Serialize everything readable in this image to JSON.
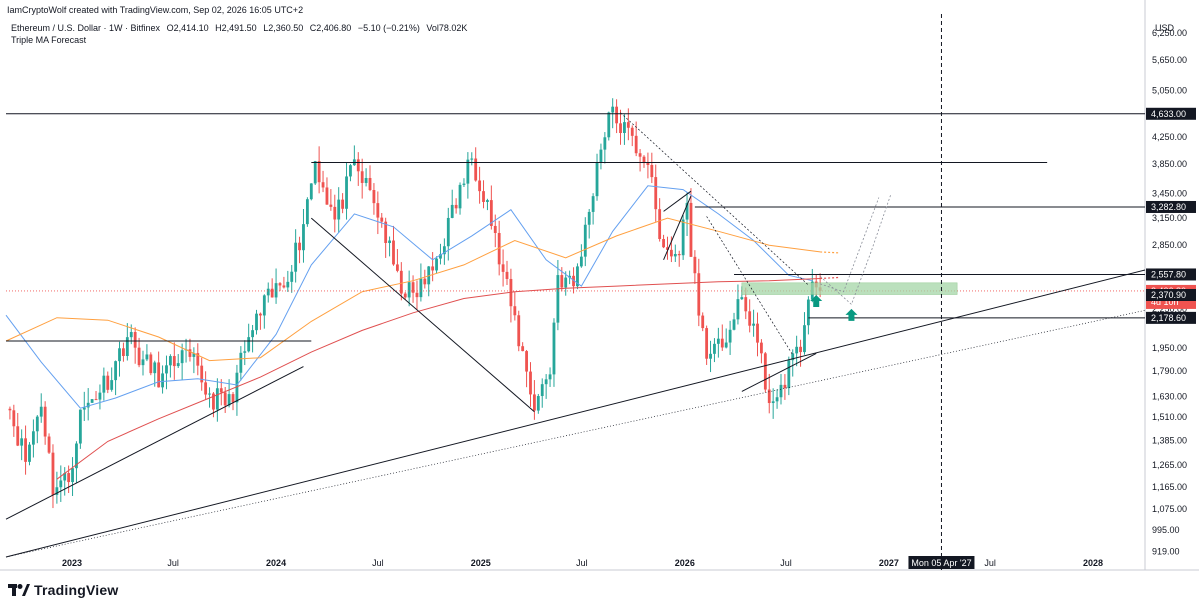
{
  "header": {
    "attribution": "IamCryptoWolf created with TradingView.com, Sep 02, 2026 16:05 UTC+2"
  },
  "legend": {
    "symbol": "Ethereum / U.S. Dollar · 1W · Bitfinex",
    "open": "O2,414.10",
    "high": "H2,491.50",
    "low": "L2,360.50",
    "close": "C2,406.80",
    "change": "−5.10 (−0.21%)",
    "volume": "Vol78.02K",
    "indicator": "Triple MA Forecast"
  },
  "currency": "USD",
  "brand": {
    "name": "TradingView",
    "logo_icon": "tradingview-logo-icon"
  },
  "colors": {
    "up": "#26a69a",
    "down": "#ef5350",
    "ma_fast": "#64a0f0",
    "ma_mid": "#ffa040",
    "ma_slow": "#e05050",
    "support_zone": "#a5d6a7",
    "arrow": "#089981"
  },
  "chart_data": {
    "type": "candlestick",
    "scale": "log",
    "ylim": [
      900,
      6700
    ],
    "yticks": [
      6250,
      5650,
      5050,
      4650,
      4250,
      3850,
      3450,
      3150,
      2850,
      2550,
      2250,
      1950,
      1790,
      1630,
      1510,
      1385,
      1265,
      1165,
      1075,
      995,
      919
    ],
    "ytick_labels": [
      "6,250.00",
      "5,650.00",
      "5,050.00",
      "4,650.00",
      "4,250.00",
      "3,850.00",
      "3,450.00",
      "3,150.00",
      "2,850.00",
      "2,550.00",
      "2,250.00",
      "1,950.00",
      "1,790.00",
      "1,630.00",
      "1,510.00",
      "1,385.00",
      "1,265.00",
      "1,165.00",
      "1,075.00",
      "995.00",
      "919.00"
    ],
    "xlim": [
      "2022-09-05",
      "2028-04-03"
    ],
    "xticks": [
      {
        "label": "2023",
        "date": "2023-01-01",
        "bold": true
      },
      {
        "label": "Jul",
        "date": "2023-07-01",
        "bold": false
      },
      {
        "label": "2024",
        "date": "2024-01-01",
        "bold": true
      },
      {
        "label": "Jul",
        "date": "2024-07-01",
        "bold": false
      },
      {
        "label": "2025",
        "date": "2025-01-01",
        "bold": true
      },
      {
        "label": "Jul",
        "date": "2025-07-01",
        "bold": false
      },
      {
        "label": "2026",
        "date": "2026-01-01",
        "bold": true
      },
      {
        "label": "Jul",
        "date": "2026-07-01",
        "bold": false
      },
      {
        "label": "2027",
        "date": "2027-01-01",
        "bold": true
      },
      {
        "label": "Jul",
        "date": "2027-07-01",
        "bold": false
      },
      {
        "label": "2028",
        "date": "2028-01-01",
        "bold": true
      }
    ],
    "price_labels": [
      {
        "text": "4,633.00",
        "value": 4633,
        "style": "dark"
      },
      {
        "text": "3,282.80",
        "value": 3282.8,
        "style": "dark"
      },
      {
        "text": "2,557.80",
        "value": 2557.8,
        "style": "dark"
      },
      {
        "text": "2,406.80",
        "value": 2406.8,
        "style": "red",
        "countdown": "4d 10h"
      },
      {
        "text": "2,370.90",
        "value": 2370.9,
        "style": "dark"
      },
      {
        "text": "2,178.60",
        "value": 2178.6,
        "style": "dark"
      }
    ],
    "crosshair": {
      "date": "2027-04-05",
      "label": "Mon 05 Apr '27"
    },
    "last_close": 2406.8,
    "anchors": [
      {
        "date": "2022-09-05",
        "close": 1630
      },
      {
        "date": "2022-10-10",
        "close": 1290
      },
      {
        "date": "2022-11-07",
        "close": 1600
      },
      {
        "date": "2022-11-28",
        "close": 1170
      },
      {
        "date": "2022-12-26",
        "close": 1200
      },
      {
        "date": "2023-01-16",
        "close": 1520
      },
      {
        "date": "2023-02-13",
        "close": 1650
      },
      {
        "date": "2023-03-13",
        "close": 1780
      },
      {
        "date": "2023-04-10",
        "close": 2050
      },
      {
        "date": "2023-05-08",
        "close": 1850
      },
      {
        "date": "2023-06-12",
        "close": 1740
      },
      {
        "date": "2023-07-10",
        "close": 1900
      },
      {
        "date": "2023-08-07",
        "close": 1830
      },
      {
        "date": "2023-09-04",
        "close": 1630
      },
      {
        "date": "2023-10-09",
        "close": 1590
      },
      {
        "date": "2023-10-30",
        "close": 1840
      },
      {
        "date": "2023-11-20",
        "close": 2080
      },
      {
        "date": "2023-12-11",
        "close": 2280
      },
      {
        "date": "2024-01-15",
        "close": 2500
      },
      {
        "date": "2024-02-12",
        "close": 2900
      },
      {
        "date": "2024-03-11",
        "close": 3900
      },
      {
        "date": "2024-04-15",
        "close": 3120
      },
      {
        "date": "2024-05-20",
        "close": 3820
      },
      {
        "date": "2024-06-17",
        "close": 3450
      },
      {
        "date": "2024-07-08",
        "close": 3100
      },
      {
        "date": "2024-08-05",
        "close": 2500
      },
      {
        "date": "2024-09-02",
        "close": 2350
      },
      {
        "date": "2024-10-07",
        "close": 2600
      },
      {
        "date": "2024-11-11",
        "close": 3200
      },
      {
        "date": "2024-12-16",
        "close": 3950
      },
      {
        "date": "2025-01-13",
        "close": 3350
      },
      {
        "date": "2025-02-03",
        "close": 2700
      },
      {
        "date": "2025-03-03",
        "close": 2150
      },
      {
        "date": "2025-04-07",
        "close": 1580
      },
      {
        "date": "2025-05-05",
        "close": 1800
      },
      {
        "date": "2025-05-19",
        "close": 2550
      },
      {
        "date": "2025-06-16",
        "close": 2450
      },
      {
        "date": "2025-07-07",
        "close": 3000
      },
      {
        "date": "2025-07-28",
        "close": 3850
      },
      {
        "date": "2025-08-18",
        "close": 4650
      },
      {
        "date": "2025-09-08",
        "close": 4450
      },
      {
        "date": "2025-10-06",
        "close": 4100
      },
      {
        "date": "2025-10-27",
        "close": 3900
      },
      {
        "date": "2025-11-17",
        "close": 2900
      },
      {
        "date": "2025-12-15",
        "close": 2700
      },
      {
        "date": "2026-01-05",
        "close": 3250
      },
      {
        "date": "2026-01-26",
        "close": 2200
      },
      {
        "date": "2026-02-16",
        "close": 1850
      },
      {
        "date": "2026-03-16",
        "close": 2050
      },
      {
        "date": "2026-04-13",
        "close": 2300
      },
      {
        "date": "2026-05-04",
        "close": 2120
      },
      {
        "date": "2026-05-25",
        "close": 1700
      },
      {
        "date": "2026-06-15",
        "close": 1560
      },
      {
        "date": "2026-07-06",
        "close": 1850
      },
      {
        "date": "2026-07-27",
        "close": 1920
      },
      {
        "date": "2026-08-10",
        "close": 2400
      },
      {
        "date": "2026-08-31",
        "close": 2406.8
      }
    ],
    "moving_averages": [
      {
        "color": "ma_fast",
        "points": [
          {
            "date": "2022-09-05",
            "value": 2200
          },
          {
            "date": "2022-11-07",
            "value": 1850
          },
          {
            "date": "2023-01-16",
            "value": 1560
          },
          {
            "date": "2023-03-20",
            "value": 1620
          },
          {
            "date": "2023-06-05",
            "value": 1720
          },
          {
            "date": "2023-08-14",
            "value": 1740
          },
          {
            "date": "2023-10-23",
            "value": 1700
          },
          {
            "date": "2024-01-01",
            "value": 2050
          },
          {
            "date": "2024-03-04",
            "value": 2650
          },
          {
            "date": "2024-05-20",
            "value": 3200
          },
          {
            "date": "2024-07-29",
            "value": 3050
          },
          {
            "date": "2024-10-07",
            "value": 2700
          },
          {
            "date": "2024-12-16",
            "value": 2950
          },
          {
            "date": "2025-02-24",
            "value": 3250
          },
          {
            "date": "2025-04-28",
            "value": 2700
          },
          {
            "date": "2025-06-30",
            "value": 2450
          },
          {
            "date": "2025-08-25",
            "value": 3000
          },
          {
            "date": "2025-10-27",
            "value": 3550
          },
          {
            "date": "2025-12-29",
            "value": 3500
          },
          {
            "date": "2026-03-02",
            "value": 3200
          },
          {
            "date": "2026-05-04",
            "value": 2900
          },
          {
            "date": "2026-07-06",
            "value": 2550
          },
          {
            "date": "2026-08-17",
            "value": 2500
          }
        ]
      },
      {
        "color": "ma_mid",
        "points": [
          {
            "date": "2022-09-05",
            "value": 2000
          },
          {
            "date": "2022-12-05",
            "value": 2180
          },
          {
            "date": "2023-03-06",
            "value": 2160
          },
          {
            "date": "2023-06-05",
            "value": 2030
          },
          {
            "date": "2023-09-04",
            "value": 1860
          },
          {
            "date": "2023-12-04",
            "value": 1880
          },
          {
            "date": "2024-03-04",
            "value": 2150
          },
          {
            "date": "2024-06-03",
            "value": 2400
          },
          {
            "date": "2024-09-02",
            "value": 2500
          },
          {
            "date": "2024-12-02",
            "value": 2650
          },
          {
            "date": "2025-03-03",
            "value": 2900
          },
          {
            "date": "2025-06-02",
            "value": 2720
          },
          {
            "date": "2025-09-01",
            "value": 2950
          },
          {
            "date": "2025-12-01",
            "value": 3150
          },
          {
            "date": "2026-03-02",
            "value": 3000
          },
          {
            "date": "2026-06-01",
            "value": 2850
          },
          {
            "date": "2026-08-31",
            "value": 2780
          }
        ],
        "forecast_to": {
          "date": "2026-10-05",
          "value": 2770
        }
      },
      {
        "color": "ma_slow",
        "points": [
          {
            "date": "2022-12-05",
            "value": 1200
          },
          {
            "date": "2023-03-06",
            "value": 1380
          },
          {
            "date": "2023-06-05",
            "value": 1500
          },
          {
            "date": "2023-09-04",
            "value": 1620
          },
          {
            "date": "2023-12-04",
            "value": 1750
          },
          {
            "date": "2024-03-04",
            "value": 1920
          },
          {
            "date": "2024-06-03",
            "value": 2080
          },
          {
            "date": "2024-09-02",
            "value": 2220
          },
          {
            "date": "2024-12-02",
            "value": 2340
          },
          {
            "date": "2025-03-03",
            "value": 2400
          },
          {
            "date": "2025-06-02",
            "value": 2430
          },
          {
            "date": "2025-09-01",
            "value": 2450
          },
          {
            "date": "2025-12-01",
            "value": 2470
          },
          {
            "date": "2026-03-02",
            "value": 2490
          },
          {
            "date": "2026-06-01",
            "value": 2500
          },
          {
            "date": "2026-08-31",
            "value": 2520
          }
        ],
        "forecast_to": {
          "date": "2026-10-05",
          "value": 2530
        }
      }
    ]
  }
}
